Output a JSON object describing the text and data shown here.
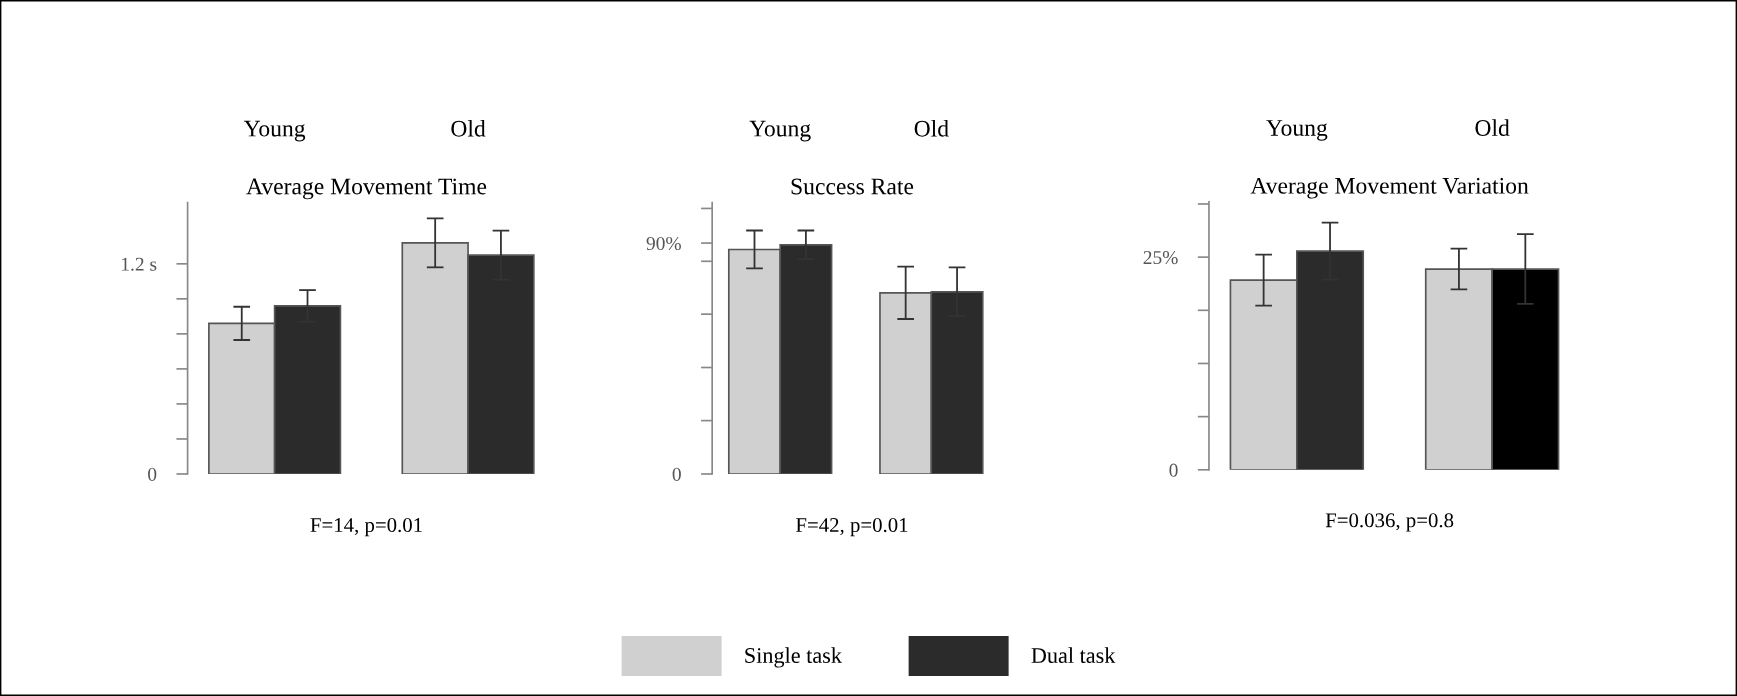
{
  "chart_data": [
    {
      "type": "bar",
      "title": "Average Movement Time",
      "categories": [
        "Young",
        "Old"
      ],
      "series": [
        {
          "color": "#d0d0d0",
          "values": [
            0.86,
            1.32
          ],
          "errors": [
            0.095,
            0.14
          ]
        },
        {
          "color": "#2b2b2b",
          "values": [
            0.96,
            1.25
          ],
          "errors": [
            0.09,
            0.14
          ]
        }
      ],
      "ylim": [
        0,
        1.55
      ],
      "yticks": [
        0,
        {
          "value": 0.2,
          "label": null
        },
        {
          "value": 0.4,
          "label": null
        },
        {
          "value": 0.6,
          "label": null
        },
        {
          "value": 0.8,
          "label": null
        },
        {
          "value": 1.0,
          "label": null
        },
        {
          "value": 1.2,
          "label": "1.2 s"
        }
      ],
      "annotations": [
        "F=14, p=0.01"
      ],
      "grid": false,
      "legend": false
    },
    {
      "type": "bar",
      "title": "Success Rate",
      "categories": [
        "Young",
        "Old"
      ],
      "series": [
        {
          "name": "Single task",
          "color": "#d0d0d0",
          "values": [
            87.5,
            70.6
          ],
          "errors": [
            7.4,
            10.2
          ]
        },
        {
          "name": "Dual task",
          "color": "#2b2b2b",
          "values": [
            89.3,
            71
          ],
          "errors": [
            5.6,
            9.5
          ]
        }
      ],
      "ylim": [
        0,
        105.8
      ],
      "yticks": [
        0,
        {
          "value": 20.8,
          "label": null
        },
        {
          "value": 41.5,
          "label": null
        },
        {
          "value": 62.3,
          "label": null
        },
        {
          "value": 82.9,
          "label": null
        },
        {
          "value": 90,
          "label": "90%"
        },
        {
          "value": 103.5,
          "label": null
        }
      ],
      "annotations": [
        "F=42, p=0.01"
      ],
      "grid": false,
      "legend": "bottom"
    },
    {
      "type": "bar",
      "title": "Average Movement Variation",
      "categories": [
        "Young",
        "Old"
      ],
      "series": [
        {
          "color": "#d0d0d0",
          "values": [
            22.3,
            23.6
          ],
          "errors": [
            3.0,
            2.4
          ]
        },
        {
          "colors": [
            "#2b2b2b",
            "#000000"
          ],
          "values": [
            25.7,
            23.6
          ],
          "errors": [
            3.35,
            4.1
          ]
        }
      ],
      "ylim": [
        0,
        31.5
      ],
      "yticks": [
        0,
        {
          "value": 6.25,
          "label": null
        },
        {
          "value": 12.5,
          "label": null
        },
        {
          "value": 18.75,
          "label": null
        },
        {
          "value": 25,
          "label": "25%"
        },
        {
          "value": 31.25,
          "label": null
        }
      ],
      "annotations": [
        "F=0.036, p=0.8"
      ],
      "grid": false,
      "legend": false
    }
  ]
}
